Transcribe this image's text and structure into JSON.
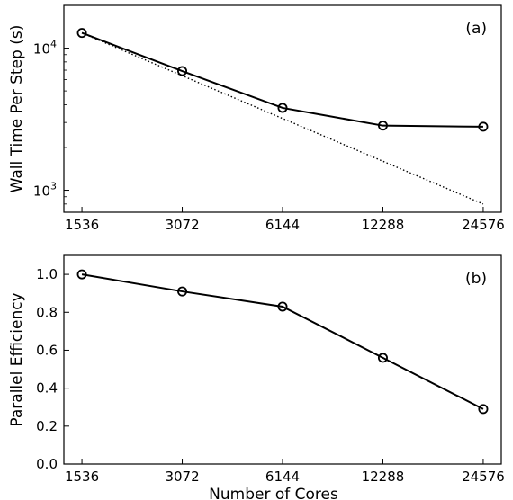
{
  "chart_data": [
    {
      "type": "line",
      "panel_label": "(a)",
      "xlabel": "",
      "ylabel": "Wall Time Per Step (s)",
      "x_scale": "log2",
      "y_scale": "log10",
      "x": [
        1536,
        3072,
        6144,
        12288,
        24576
      ],
      "x_tick_labels": [
        "1536",
        "3072",
        "6144",
        "12288",
        "24576"
      ],
      "y_tick_labels": [
        {
          "value": 1000,
          "base": "10",
          "exp": "3"
        },
        {
          "value": 10000,
          "base": "10",
          "exp": "4"
        }
      ],
      "ylim": [
        700,
        20000
      ],
      "series": [
        {
          "values": [
            12800,
            6900,
            3800,
            2850,
            2800
          ],
          "style": "solid",
          "marker": "circle",
          "color": "#000000"
        },
        {
          "values": [
            12800,
            6400,
            3200,
            1600,
            800
          ],
          "style": "dotted",
          "marker": "none",
          "color": "#000000"
        }
      ],
      "grid": false
    },
    {
      "type": "line",
      "panel_label": "(b)",
      "xlabel": "Number of Cores",
      "ylabel": "Parallel Efficiency",
      "x_scale": "log2",
      "x": [
        1536,
        3072,
        6144,
        12288,
        24576
      ],
      "x_tick_labels": [
        "1536",
        "3072",
        "6144",
        "12288",
        "24576"
      ],
      "y_ticks": [
        0.0,
        0.2,
        0.4,
        0.6,
        0.8,
        1.0
      ],
      "y_tick_labels": [
        "0.0",
        "0.2",
        "0.4",
        "0.6",
        "0.8",
        "1.0"
      ],
      "ylim": [
        0,
        1.1
      ],
      "series": [
        {
          "values": [
            1.0,
            0.91,
            0.83,
            0.56,
            0.29
          ],
          "style": "solid",
          "marker": "circle",
          "color": "#000000"
        }
      ],
      "grid": false
    }
  ]
}
